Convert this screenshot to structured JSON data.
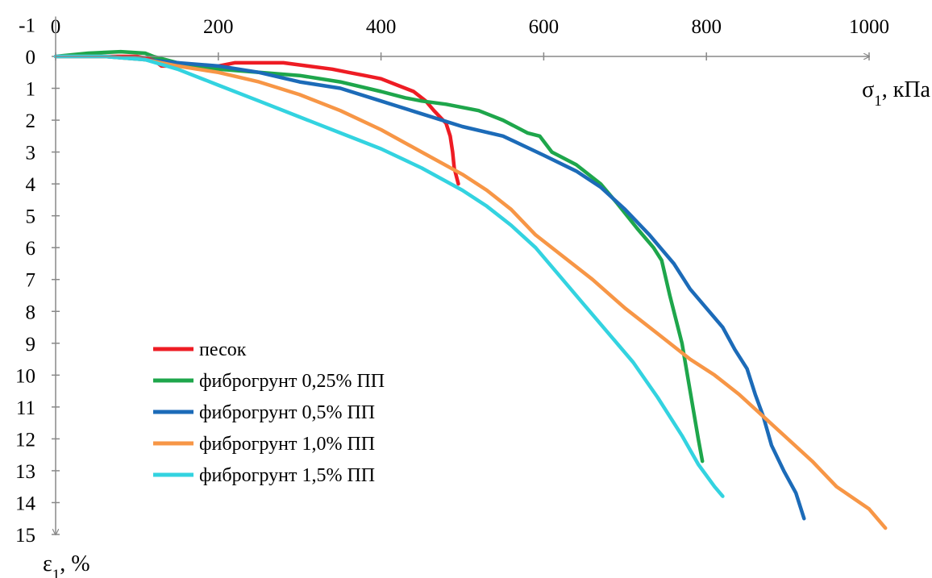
{
  "chart_data": {
    "type": "line",
    "xlabel": "σ1, кПа",
    "ylabel": "ε1, %",
    "xlim": [
      0,
      1000
    ],
    "ylim": [
      -1,
      15
    ],
    "y_inverted": true,
    "grid": false,
    "legend_position": "bottom-left",
    "x_ticks": [
      "0",
      "200",
      "400",
      "600",
      "800",
      "1000"
    ],
    "y_ticks": [
      "-1",
      "0",
      "1",
      "2",
      "3",
      "4",
      "5",
      "6",
      "7",
      "8",
      "9",
      "10",
      "11",
      "12",
      "13",
      "14",
      "15"
    ],
    "series": [
      {
        "name": "песок",
        "color": "#ee1c24",
        "points": [
          [
            0,
            0
          ],
          [
            60,
            0
          ],
          [
            100,
            0
          ],
          [
            120,
            0.1
          ],
          [
            130,
            0.3
          ],
          [
            150,
            0.3
          ],
          [
            170,
            0.3
          ],
          [
            200,
            0.3
          ],
          [
            220,
            0.2
          ],
          [
            250,
            0.2
          ],
          [
            280,
            0.2
          ],
          [
            310,
            0.3
          ],
          [
            340,
            0.4
          ],
          [
            360,
            0.5
          ],
          [
            380,
            0.6
          ],
          [
            400,
            0.7
          ],
          [
            420,
            0.9
          ],
          [
            440,
            1.1
          ],
          [
            455,
            1.4
          ],
          [
            465,
            1.7
          ],
          [
            480,
            2.1
          ],
          [
            485,
            2.5
          ],
          [
            488,
            3.0
          ],
          [
            490,
            3.5
          ],
          [
            495,
            4.0
          ]
        ]
      },
      {
        "name": "фиброгрунт 0,25% ПП",
        "color": "#1ea64b",
        "points": [
          [
            0,
            0
          ],
          [
            40,
            -0.1
          ],
          [
            80,
            -0.15
          ],
          [
            110,
            -0.1
          ],
          [
            120,
            0
          ],
          [
            150,
            0.2
          ],
          [
            200,
            0.4
          ],
          [
            250,
            0.5
          ],
          [
            300,
            0.6
          ],
          [
            350,
            0.8
          ],
          [
            400,
            1.1
          ],
          [
            430,
            1.3
          ],
          [
            450,
            1.4
          ],
          [
            480,
            1.5
          ],
          [
            520,
            1.7
          ],
          [
            550,
            2.0
          ],
          [
            580,
            2.4
          ],
          [
            595,
            2.5
          ],
          [
            610,
            3.0
          ],
          [
            640,
            3.4
          ],
          [
            670,
            4.0
          ],
          [
            690,
            4.6
          ],
          [
            715,
            5.4
          ],
          [
            735,
            6.0
          ],
          [
            745,
            6.4
          ],
          [
            755,
            7.5
          ],
          [
            770,
            9.0
          ],
          [
            780,
            10.5
          ],
          [
            790,
            12.0
          ],
          [
            795,
            12.7
          ]
        ]
      },
      {
        "name": "фиброгрунт 0,5% ПП",
        "color": "#1c6bb8",
        "points": [
          [
            0,
            0
          ],
          [
            60,
            0
          ],
          [
            110,
            0.1
          ],
          [
            150,
            0.2
          ],
          [
            200,
            0.3
          ],
          [
            250,
            0.5
          ],
          [
            300,
            0.8
          ],
          [
            350,
            1.0
          ],
          [
            400,
            1.4
          ],
          [
            450,
            1.8
          ],
          [
            500,
            2.2
          ],
          [
            550,
            2.5
          ],
          [
            600,
            3.1
          ],
          [
            640,
            3.6
          ],
          [
            670,
            4.1
          ],
          [
            700,
            4.8
          ],
          [
            730,
            5.6
          ],
          [
            760,
            6.5
          ],
          [
            780,
            7.3
          ],
          [
            800,
            7.9
          ],
          [
            820,
            8.5
          ],
          [
            835,
            9.2
          ],
          [
            850,
            9.8
          ],
          [
            860,
            10.6
          ],
          [
            870,
            11.3
          ],
          [
            880,
            12.2
          ],
          [
            895,
            13.0
          ],
          [
            910,
            13.7
          ],
          [
            920,
            14.5
          ]
        ]
      },
      {
        "name": "фиброгрунт 1,0% ПП",
        "color": "#f79646",
        "points": [
          [
            0,
            0
          ],
          [
            60,
            0
          ],
          [
            110,
            0.1
          ],
          [
            150,
            0.3
          ],
          [
            200,
            0.5
          ],
          [
            250,
            0.8
          ],
          [
            300,
            1.2
          ],
          [
            350,
            1.7
          ],
          [
            400,
            2.3
          ],
          [
            450,
            3.0
          ],
          [
            500,
            3.7
          ],
          [
            530,
            4.2
          ],
          [
            560,
            4.8
          ],
          [
            590,
            5.6
          ],
          [
            620,
            6.2
          ],
          [
            660,
            7.0
          ],
          [
            700,
            7.9
          ],
          [
            740,
            8.7
          ],
          [
            780,
            9.5
          ],
          [
            810,
            10.0
          ],
          [
            840,
            10.6
          ],
          [
            870,
            11.3
          ],
          [
            900,
            12.0
          ],
          [
            930,
            12.7
          ],
          [
            960,
            13.5
          ],
          [
            1000,
            14.2
          ],
          [
            1020,
            14.8
          ]
        ]
      },
      {
        "name": "фиброгрунт 1,5% ПП",
        "color": "#33d3e0",
        "points": [
          [
            0,
            0
          ],
          [
            60,
            0
          ],
          [
            110,
            0.1
          ],
          [
            150,
            0.4
          ],
          [
            200,
            0.9
          ],
          [
            250,
            1.4
          ],
          [
            300,
            1.9
          ],
          [
            350,
            2.4
          ],
          [
            400,
            2.9
          ],
          [
            450,
            3.5
          ],
          [
            500,
            4.2
          ],
          [
            530,
            4.7
          ],
          [
            560,
            5.3
          ],
          [
            590,
            6.0
          ],
          [
            620,
            6.9
          ],
          [
            650,
            7.8
          ],
          [
            680,
            8.7
          ],
          [
            710,
            9.6
          ],
          [
            740,
            10.7
          ],
          [
            770,
            11.9
          ],
          [
            790,
            12.8
          ],
          [
            810,
            13.5
          ],
          [
            820,
            13.8
          ]
        ]
      }
    ]
  }
}
